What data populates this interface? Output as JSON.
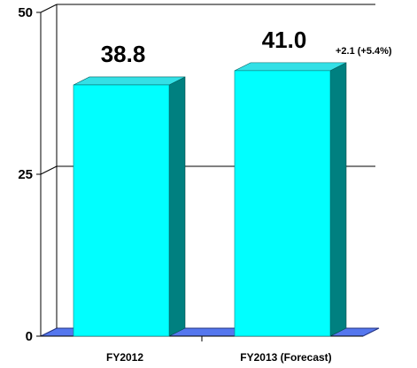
{
  "chart_data": {
    "type": "bar",
    "categories": [
      "FY2012",
      "FY2013 (Forecast)"
    ],
    "values": [
      38.8,
      41.0
    ],
    "value_labels": [
      "38.8",
      "41.0"
    ],
    "ylim": [
      0,
      50
    ],
    "yticks": [
      0,
      25,
      50
    ],
    "ytick_labels": [
      "0",
      "25",
      "50"
    ],
    "annotations": [
      {
        "category": "FY2013 (Forecast)",
        "text": "+2.1 (+5.4%)"
      }
    ],
    "grid": true,
    "style": "3d",
    "colors": {
      "bar_front": "#00FFFF",
      "bar_top": "#33E0E6",
      "bar_side": "#008080",
      "floor": "#5577EE",
      "grid": "#000000"
    }
  }
}
